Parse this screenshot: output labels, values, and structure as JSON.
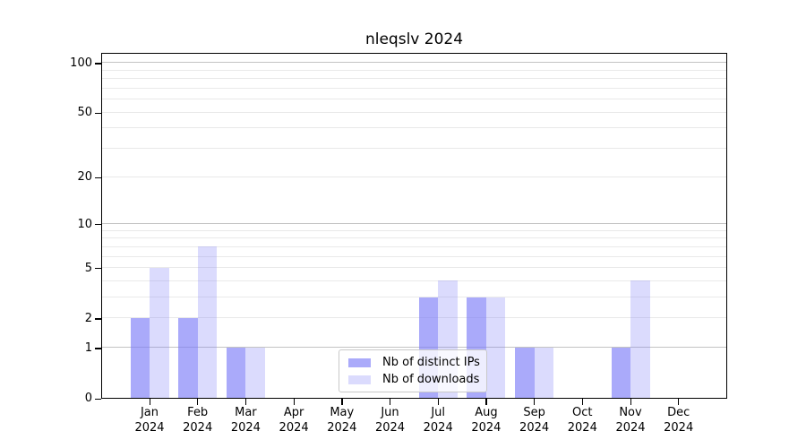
{
  "chart_data": {
    "type": "bar",
    "title": "nleqslv 2024",
    "categories": [
      "Jan 2024",
      "Feb 2024",
      "Mar 2024",
      "Apr 2024",
      "May 2024",
      "Jun 2024",
      "Jul 2024",
      "Aug 2024",
      "Sep 2024",
      "Oct 2024",
      "Nov 2024",
      "Dec 2024"
    ],
    "months": [
      {
        "m": "Jan",
        "y": "2024"
      },
      {
        "m": "Feb",
        "y": "2024"
      },
      {
        "m": "Mar",
        "y": "2024"
      },
      {
        "m": "Apr",
        "y": "2024"
      },
      {
        "m": "May",
        "y": "2024"
      },
      {
        "m": "Jun",
        "y": "2024"
      },
      {
        "m": "Jul",
        "y": "2024"
      },
      {
        "m": "Aug",
        "y": "2024"
      },
      {
        "m": "Sep",
        "y": "2024"
      },
      {
        "m": "Oct",
        "y": "2024"
      },
      {
        "m": "Nov",
        "y": "2024"
      },
      {
        "m": "Dec",
        "y": "2024"
      }
    ],
    "series": [
      {
        "name": "Nb of distinct IPs",
        "values": [
          2,
          2,
          1,
          0,
          0,
          0,
          3,
          3,
          1,
          0,
          1,
          0
        ]
      },
      {
        "name": "Nb of downloads",
        "values": [
          5,
          7,
          1,
          0,
          0,
          0,
          4,
          3,
          1,
          0,
          4,
          0
        ]
      }
    ],
    "yscale": "log1p",
    "yticks": [
      {
        "value": 0,
        "label": "0"
      },
      {
        "value": 1,
        "label": "1"
      },
      {
        "value": 2,
        "label": "2"
      },
      {
        "value": 5,
        "label": "5"
      },
      {
        "value": 10,
        "label": "10"
      },
      {
        "value": 20,
        "label": "20"
      },
      {
        "value": 50,
        "label": "50"
      },
      {
        "value": 100,
        "label": "100"
      }
    ],
    "ylim": [
      0,
      115
    ],
    "grid": "horizontal",
    "grid_major": [
      1,
      10,
      100
    ],
    "grid_minor": [
      2,
      3,
      4,
      5,
      6,
      7,
      8,
      9,
      20,
      30,
      40,
      50,
      60,
      70,
      80,
      90
    ],
    "legend_position": "bottom-center"
  },
  "colors": {
    "ips_bar": "rgba(124,124,247,0.65)",
    "downloads_bar": "rgba(124,124,247,0.28)",
    "grid_major": "#c3c3c3",
    "grid_minor": "#e9e9e9",
    "axis": "#000000",
    "background": "#ffffff"
  }
}
